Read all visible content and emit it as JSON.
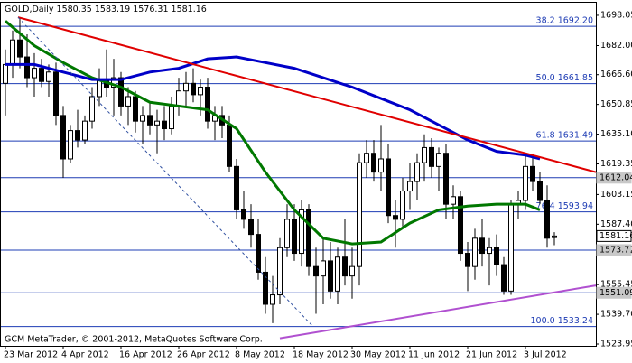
{
  "chart_data": {
    "type": "candlestick",
    "title": "GOLD,Daily",
    "header_values": [
      1580.35,
      1583.19,
      1576.31,
      1581.16
    ],
    "footer": "GCM MetaTrader, © 2001-2012, MetaQuotes Software Corp.",
    "categories": [
      "23 Mar 2012",
      null,
      null,
      null,
      null,
      null,
      null,
      null,
      "4 Apr 2012",
      null,
      null,
      null,
      null,
      null,
      null,
      null,
      "16 Apr 2012",
      null,
      null,
      null,
      null,
      null,
      null,
      null,
      "26 Apr 2012",
      null,
      null,
      null,
      null,
      null,
      null,
      null,
      "8 May 2012",
      null,
      null,
      null,
      null,
      null,
      null,
      null,
      "18 May 2012",
      null,
      null,
      null,
      null,
      null,
      null,
      null,
      "30 May 2012",
      null,
      null,
      null,
      null,
      null,
      null,
      null,
      "11 Jun 2012",
      null,
      null,
      null,
      null,
      null,
      null,
      null,
      "21 Jun 2012",
      null,
      null,
      null,
      null,
      null,
      null,
      null,
      "3 Jul 2012",
      null,
      null,
      null,
      null
    ],
    "open": [
      1662,
      1672,
      1685,
      1676,
      1665,
      1670,
      1663,
      1668,
      1645,
      1622,
      1637,
      1632,
      1642,
      1655,
      1664,
      1660,
      1665,
      1650,
      1655,
      1642,
      1645,
      1640,
      1642,
      1638,
      1650,
      1658,
      1662,
      1656,
      1660,
      1642,
      1645,
      1640,
      1618,
      1595,
      1590,
      1582,
      1562,
      1545,
      1550,
      1575,
      1590,
      1572,
      1595,
      1565,
      1560,
      1568,
      1552,
      1570,
      1560,
      1565,
      1620,
      1625,
      1615,
      1622,
      1592,
      1590,
      1605,
      1610,
      1620,
      1628,
      1618,
      1625,
      1598,
      1602,
      1572,
      1565,
      1580,
      1572,
      1575,
      1566,
      1552,
      1598,
      1600,
      1618,
      1610,
      1600,
      1580.35
    ],
    "high": [
      1680,
      1690,
      1697,
      1688,
      1678,
      1675,
      1672,
      1673,
      1650,
      1640,
      1648,
      1645,
      1660,
      1670,
      1680,
      1675,
      1668,
      1660,
      1658,
      1650,
      1652,
      1648,
      1650,
      1655,
      1665,
      1668,
      1670,
      1664,
      1665,
      1650,
      1650,
      1645,
      1622,
      1605,
      1598,
      1590,
      1570,
      1560,
      1580,
      1598,
      1598,
      1600,
      1598,
      1575,
      1580,
      1578,
      1575,
      1590,
      1575,
      1625,
      1632,
      1632,
      1640,
      1630,
      1600,
      1612,
      1620,
      1625,
      1635,
      1633,
      1628,
      1630,
      1608,
      1605,
      1578,
      1585,
      1590,
      1580,
      1582,
      1570,
      1600,
      1605,
      1625,
      1623,
      1615,
      1608,
      1583.19
    ],
    "low": [
      1645,
      1665,
      1670,
      1660,
      1655,
      1660,
      1655,
      1640,
      1612,
      1620,
      1628,
      1630,
      1638,
      1650,
      1655,
      1645,
      1645,
      1640,
      1636,
      1630,
      1635,
      1625,
      1632,
      1635,
      1645,
      1650,
      1652,
      1645,
      1638,
      1632,
      1633,
      1615,
      1590,
      1585,
      1575,
      1558,
      1540,
      1535,
      1545,
      1570,
      1568,
      1565,
      1560,
      1540,
      1545,
      1548,
      1545,
      1555,
      1548,
      1555,
      1612,
      1610,
      1605,
      1588,
      1575,
      1585,
      1595,
      1600,
      1610,
      1612,
      1605,
      1590,
      1590,
      1568,
      1552,
      1558,
      1565,
      1555,
      1560,
      1550,
      1550,
      1590,
      1595,
      1605,
      1598,
      1575,
      1576.31
    ],
    "close": [
      1672,
      1685,
      1676,
      1665,
      1670,
      1663,
      1668,
      1645,
      1622,
      1637,
      1632,
      1642,
      1655,
      1664,
      1660,
      1665,
      1650,
      1655,
      1642,
      1645,
      1640,
      1642,
      1638,
      1650,
      1658,
      1662,
      1656,
      1660,
      1642,
      1645,
      1640,
      1618,
      1595,
      1590,
      1582,
      1562,
      1545,
      1550,
      1575,
      1590,
      1572,
      1595,
      1565,
      1560,
      1568,
      1552,
      1570,
      1560,
      1565,
      1620,
      1625,
      1615,
      1622,
      1592,
      1590,
      1605,
      1610,
      1620,
      1628,
      1618,
      1625,
      1598,
      1602,
      1572,
      1565,
      1580,
      1572,
      1575,
      1566,
      1552,
      1598,
      1600,
      1618,
      1610,
      1600,
      1580,
      1581.16
    ],
    "series": [
      {
        "color": "#007800",
        "x": [
          0,
          4,
          8,
          12,
          16,
          20,
          24,
          28,
          32,
          36,
          40,
          44,
          48,
          52,
          56,
          60,
          64,
          68,
          72,
          74
        ],
        "values": [
          1695,
          1682,
          1673,
          1665,
          1660,
          1652,
          1650,
          1648,
          1638,
          1615,
          1595,
          1580,
          1577,
          1578,
          1588,
          1595,
          1597,
          1598,
          1598,
          1595
        ]
      },
      {
        "color": "#0000c8",
        "x": [
          0,
          4,
          8,
          12,
          16,
          20,
          24,
          28,
          32,
          36,
          40,
          44,
          48,
          52,
          56,
          60,
          64,
          68,
          72,
          74
        ],
        "values": [
          1672,
          1672,
          1668,
          1664,
          1664,
          1668,
          1670,
          1675,
          1676,
          1673,
          1670,
          1665,
          1660,
          1654,
          1648,
          1640,
          1632,
          1626,
          1624,
          1622
        ]
      }
    ],
    "trend_lines": [
      {
        "color": "#e00000",
        "x": [
          1.75,
          81.75
        ],
        "values": [
          1697,
          1615
        ],
        "dashed": false
      },
      {
        "color": "#b050d0",
        "x": [
          38,
          81.75
        ],
        "values": [
          1527,
          1555
        ],
        "dashed": false
      },
      {
        "color": "#3050a0",
        "x": [
          1.75,
          42.4
        ],
        "values": [
          1697,
          1534
        ],
        "dashed": true
      }
    ],
    "fib_levels": [
      {
        "value": 1692.2,
        "label": "38.2 1692.20"
      },
      {
        "value": 1661.85,
        "label": "50.0 1661.85"
      },
      {
        "value": 1631.49,
        "label": "61.8 1631.49"
      },
      {
        "value": 1593.94,
        "label": "76.4 1593.94"
      },
      {
        "value": 1533.24,
        "label": "100.0 1533.24"
      }
    ],
    "price_marks": [
      {
        "value": 1612.04,
        "label": "1612.04",
        "line": true,
        "current": false
      },
      {
        "value": 1581.16,
        "label": "1581.16",
        "line": false,
        "current": true
      },
      {
        "value": 1573.71,
        "label": "1573.71",
        "line": true,
        "current": false
      },
      {
        "value": 1551.09,
        "label": "1551.09",
        "line": true,
        "current": false
      }
    ],
    "xlim": [
      -0.75,
      81.75
    ],
    "ylim": [
      1523.0,
      1705.2
    ],
    "yticks": [
      1698.05,
      {
        "value": 1682,
        "label": "1682.00"
      },
      {
        "value": 1666.6,
        "label": "1666.60"
      },
      1650.85,
      {
        "value": 1635.1,
        "label": "1635.10"
      },
      1619.35,
      1603.15,
      {
        "value": 1587.4,
        "label": "1587.40"
      },
      1571.65,
      1555.45,
      {
        "value": 1539.7,
        "label": "1539.70"
      },
      1523.95
    ]
  }
}
